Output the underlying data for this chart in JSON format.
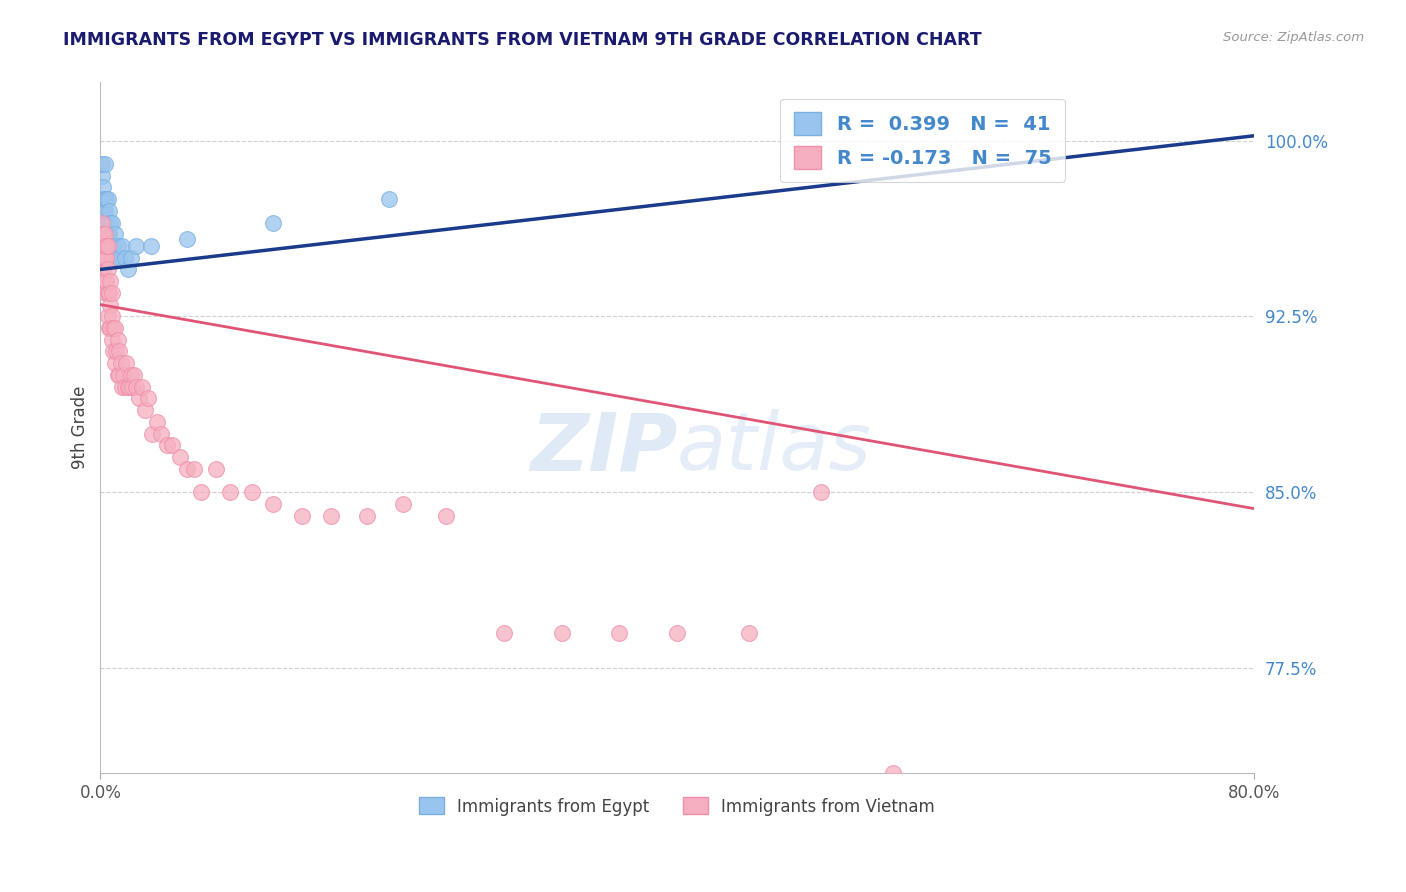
{
  "title": "IMMIGRANTS FROM EGYPT VS IMMIGRANTS FROM VIETNAM 9TH GRADE CORRELATION CHART",
  "source": "Source: ZipAtlas.com",
  "ylabel": "9th Grade",
  "y_tick_labels": [
    "100.0%",
    "92.5%",
    "85.0%",
    "77.5%"
  ],
  "y_tick_values": [
    1.0,
    0.925,
    0.85,
    0.775
  ],
  "xlim": [
    0.0,
    0.8
  ],
  "ylim": [
    0.73,
    1.025
  ],
  "legend_egypt_short": "Immigrants from Egypt",
  "legend_vietnam_short": "Immigrants from Vietnam",
  "egypt_color": "#99c4ed",
  "egypt_edge_color": "#7ab0e0",
  "egypt_line_color": "#1a3a8c",
  "vietnam_color": "#f5afc0",
  "vietnam_edge_color": "#f08fa8",
  "vietnam_line_color": "#e05575",
  "watermark_color": "#c5d9f0",
  "grid_color": "#d0d0d0",
  "title_color": "#1a1a6e",
  "right_tick_color": "#4488cc",
  "egypt_line_x": [
    0.0,
    0.8
  ],
  "egypt_line_y": [
    0.945,
    1.002
  ],
  "vietnam_line_x": [
    0.0,
    0.8
  ],
  "vietnam_line_y": [
    0.93,
    0.843
  ],
  "egypt_scatter_x": [
    0.001,
    0.001,
    0.001,
    0.002,
    0.002,
    0.002,
    0.002,
    0.002,
    0.003,
    0.003,
    0.003,
    0.003,
    0.003,
    0.004,
    0.004,
    0.004,
    0.004,
    0.005,
    0.005,
    0.005,
    0.006,
    0.006,
    0.006,
    0.007,
    0.007,
    0.008,
    0.008,
    0.009,
    0.01,
    0.011,
    0.012,
    0.013,
    0.015,
    0.017,
    0.019,
    0.021,
    0.025,
    0.035,
    0.06,
    0.12,
    0.2
  ],
  "egypt_scatter_y": [
    0.975,
    0.985,
    0.99,
    0.96,
    0.965,
    0.97,
    0.975,
    0.98,
    0.96,
    0.965,
    0.97,
    0.975,
    0.99,
    0.955,
    0.96,
    0.965,
    0.975,
    0.955,
    0.96,
    0.975,
    0.955,
    0.96,
    0.97,
    0.955,
    0.965,
    0.95,
    0.965,
    0.955,
    0.96,
    0.95,
    0.955,
    0.95,
    0.955,
    0.95,
    0.945,
    0.95,
    0.955,
    0.955,
    0.958,
    0.965,
    0.975
  ],
  "vietnam_scatter_x": [
    0.001,
    0.001,
    0.001,
    0.002,
    0.002,
    0.002,
    0.003,
    0.003,
    0.003,
    0.003,
    0.004,
    0.004,
    0.004,
    0.004,
    0.005,
    0.005,
    0.005,
    0.005,
    0.006,
    0.006,
    0.007,
    0.007,
    0.007,
    0.008,
    0.008,
    0.008,
    0.009,
    0.009,
    0.01,
    0.01,
    0.011,
    0.012,
    0.012,
    0.013,
    0.013,
    0.014,
    0.015,
    0.016,
    0.017,
    0.018,
    0.019,
    0.02,
    0.021,
    0.022,
    0.023,
    0.025,
    0.027,
    0.029,
    0.031,
    0.033,
    0.036,
    0.039,
    0.042,
    0.046,
    0.05,
    0.055,
    0.06,
    0.065,
    0.07,
    0.08,
    0.09,
    0.105,
    0.12,
    0.14,
    0.16,
    0.185,
    0.21,
    0.24,
    0.28,
    0.32,
    0.36,
    0.4,
    0.45,
    0.5,
    0.55
  ],
  "vietnam_scatter_y": [
    0.955,
    0.96,
    0.965,
    0.945,
    0.95,
    0.96,
    0.94,
    0.95,
    0.955,
    0.96,
    0.935,
    0.94,
    0.95,
    0.955,
    0.925,
    0.935,
    0.945,
    0.955,
    0.92,
    0.935,
    0.92,
    0.93,
    0.94,
    0.915,
    0.925,
    0.935,
    0.91,
    0.92,
    0.905,
    0.92,
    0.91,
    0.9,
    0.915,
    0.9,
    0.91,
    0.905,
    0.895,
    0.9,
    0.895,
    0.905,
    0.895,
    0.895,
    0.9,
    0.895,
    0.9,
    0.895,
    0.89,
    0.895,
    0.885,
    0.89,
    0.875,
    0.88,
    0.875,
    0.87,
    0.87,
    0.865,
    0.86,
    0.86,
    0.85,
    0.86,
    0.85,
    0.85,
    0.845,
    0.84,
    0.84,
    0.84,
    0.845,
    0.84,
    0.79,
    0.79,
    0.79,
    0.79,
    0.79,
    0.85,
    0.73
  ]
}
